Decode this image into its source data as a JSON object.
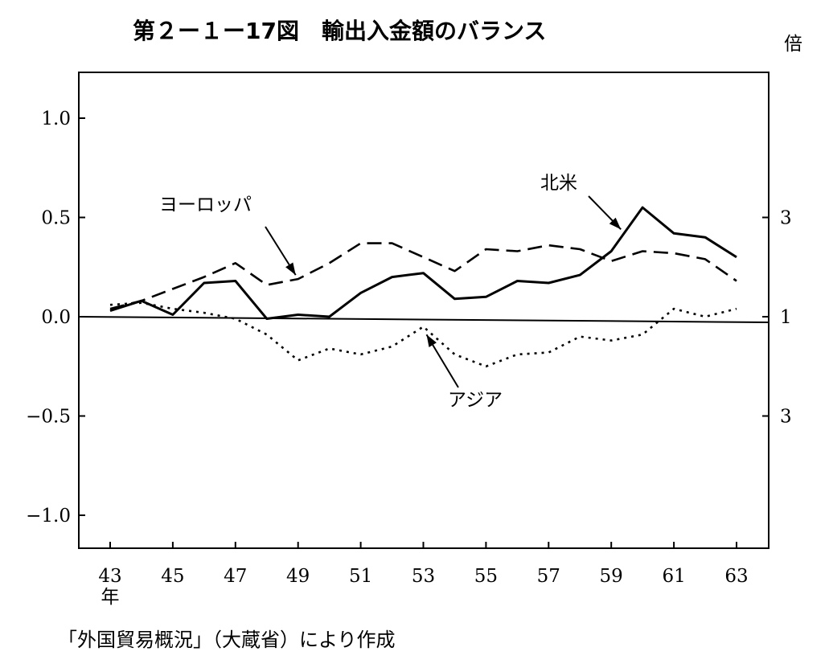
{
  "chart_data": {
    "type": "line",
    "title": "第２ー１ー17図　輸出入金額のバランス",
    "x": [
      "43",
      "44",
      "45",
      "46",
      "47",
      "48",
      "49",
      "50",
      "51",
      "52",
      "53",
      "54",
      "55",
      "56",
      "57",
      "58",
      "59",
      "60",
      "61",
      "62",
      "63"
    ],
    "x_tick_labels": [
      "43",
      "45",
      "47",
      "49",
      "51",
      "53",
      "55",
      "57",
      "59",
      "61",
      "63"
    ],
    "x_first_suffix": "年",
    "xlim": [
      "43",
      "63"
    ],
    "ylim": [
      -1.2,
      1.2
    ],
    "y_ticks_left": [
      "1.0",
      "0.5",
      "0.0",
      "−0.5",
      "−1.0"
    ],
    "y_ticks_left_values": [
      1.0,
      0.5,
      0.0,
      -0.5,
      -1.0
    ],
    "y_axis_right": {
      "unit": "倍",
      "ticks": [
        "3",
        "1",
        "3"
      ],
      "tick_values": [
        0.5,
        0.0,
        -0.5
      ]
    },
    "grid": false,
    "series": [
      {
        "name": "北米",
        "style": "solid",
        "values": [
          0.03,
          0.08,
          0.01,
          0.17,
          0.18,
          -0.01,
          0.01,
          0.0,
          0.12,
          0.2,
          0.22,
          0.09,
          0.1,
          0.18,
          0.17,
          0.21,
          0.33,
          0.55,
          0.42,
          0.4,
          0.3
        ]
      },
      {
        "name": "ヨーロッパ",
        "style": "dashed",
        "values": [
          0.04,
          0.08,
          0.14,
          0.2,
          0.27,
          0.16,
          0.19,
          0.27,
          0.37,
          0.37,
          0.3,
          0.23,
          0.34,
          0.33,
          0.36,
          0.34,
          0.28,
          0.33,
          0.32,
          0.29,
          0.18
        ]
      },
      {
        "name": "アジア",
        "style": "dotted",
        "values": [
          0.06,
          0.07,
          0.04,
          0.02,
          -0.01,
          -0.09,
          -0.22,
          -0.16,
          -0.19,
          -0.15,
          -0.05,
          -0.19,
          -0.25,
          -0.19,
          -0.18,
          -0.1,
          -0.12,
          -0.09,
          0.04,
          0.0,
          0.04
        ]
      }
    ],
    "source": "「外国貿易概況」（大蔵省）により作成"
  }
}
